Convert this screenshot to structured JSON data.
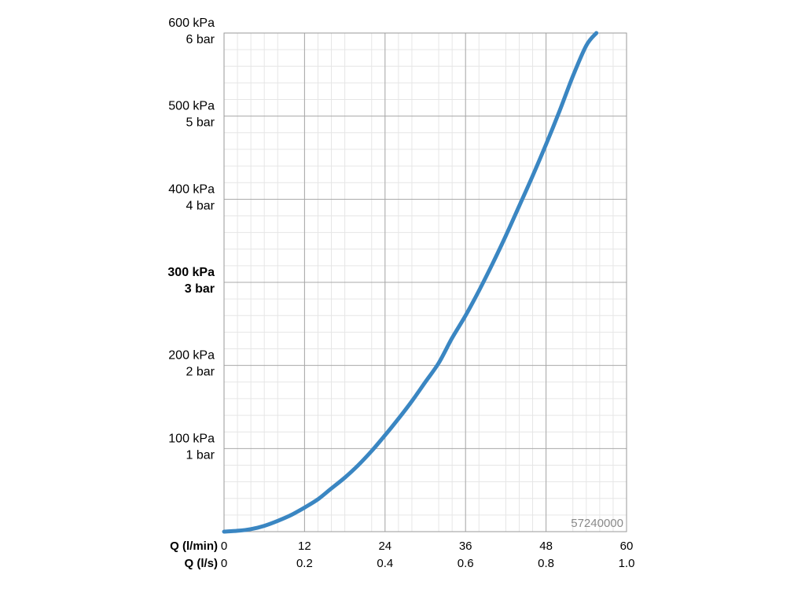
{
  "chart_data": {
    "type": "line",
    "ref_code": "57240000",
    "y_ticks": [
      {
        "value": 100,
        "kpa": "100 kPa",
        "bar": "1 bar",
        "bold": false
      },
      {
        "value": 200,
        "kpa": "200 kPa",
        "bar": "2 bar",
        "bold": false
      },
      {
        "value": 300,
        "kpa": "300 kPa",
        "bar": "3 bar",
        "bold": true
      },
      {
        "value": 400,
        "kpa": "400 kPa",
        "bar": "4 bar",
        "bold": false
      },
      {
        "value": 500,
        "kpa": "500 kPa",
        "bar": "5 bar",
        "bold": false
      },
      {
        "value": 600,
        "kpa": "600 kPa",
        "bar": "6 bar",
        "bold": false
      }
    ],
    "x_axis_lmin": {
      "label": "Q (l/min)",
      "ticks": [
        "0",
        "12",
        "24",
        "36",
        "48",
        "60"
      ],
      "values": [
        0,
        12,
        24,
        36,
        48,
        60
      ]
    },
    "x_axis_ls": {
      "label": "Q (l/s)",
      "ticks": [
        "0",
        "0.2",
        "0.4",
        "0.6",
        "0.8",
        "1.0"
      ]
    },
    "xlim": [
      0,
      60
    ],
    "ylim": [
      0,
      600
    ],
    "grid": true,
    "series": [
      {
        "color": "#3a86c2",
        "x": [
          0,
          2,
          4,
          6,
          8,
          10,
          12,
          14,
          16,
          18,
          20,
          22,
          24,
          26,
          28,
          30,
          32,
          34,
          36,
          38,
          40,
          42,
          44,
          46,
          48,
          50,
          52,
          54,
          55.5
        ],
        "y": [
          0,
          1,
          3,
          7,
          13,
          20,
          29,
          39,
          52,
          65,
          80,
          97,
          116,
          136,
          157,
          180,
          203,
          233,
          260,
          290,
          322,
          356,
          392,
          428,
          466,
          506,
          548,
          585,
          600
        ]
      }
    ]
  }
}
